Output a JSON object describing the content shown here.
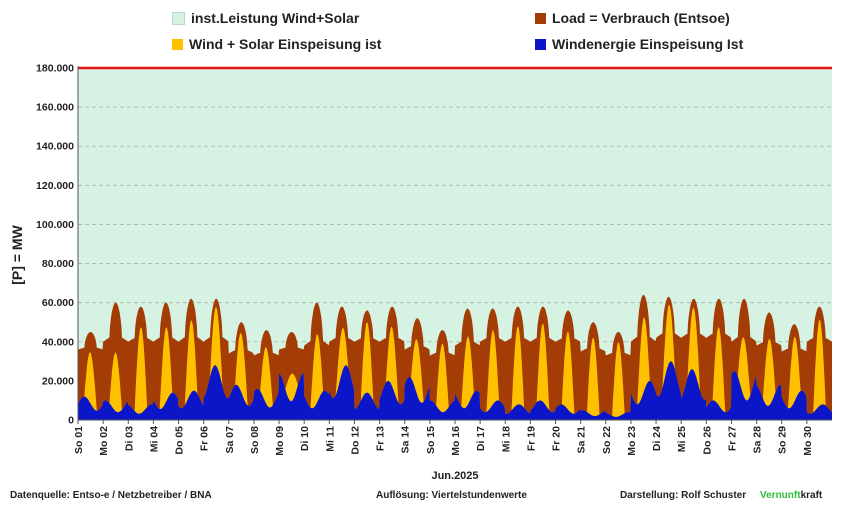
{
  "colors": {
    "installed": "#d5f2e2",
    "load": "#a33c05",
    "windsolar": "#ffc000",
    "wind": "#0a16c8",
    "grid": "#a8b4a8",
    "installed_line": "#e11414"
  },
  "legend": {
    "installed": "inst.Leistung Wind+Solar",
    "load": "Load =  Verbrauch (Entsoe)",
    "windsolar": "Wind + Solar Einspeisung ist",
    "wind": "Windenergie Einspeisung Ist"
  },
  "footer": {
    "source": "Datenquelle: Entso-e  / Netzbetreiber / BNA",
    "resolution": "Auflösung: Viertelstundenwerte",
    "author": "Darstellung:  Rolf Schuster",
    "brand_green": "Vernunft",
    "brand_black": "kraft"
  },
  "chart_data": {
    "type": "area",
    "xlabel": "Jun.2025",
    "ylabel": "[P] = MW",
    "ylim": [
      0,
      180000
    ],
    "y_ticks": [
      "0",
      "20.000",
      "40.000",
      "60.000",
      "80.000",
      "100.000",
      "120.000",
      "140.000",
      "160.000",
      "180.000"
    ],
    "grid": true,
    "legend_position": "top",
    "x_ticks": [
      "So 01",
      "Mo 02",
      "Di 03",
      "Mi 04",
      "Do 05",
      "Fr 06",
      "Sa 07",
      "So 08",
      "Mo 09",
      "Di 10",
      "Mi 11",
      "Do 12",
      "Fr 13",
      "Sa 14",
      "So 15",
      "Mo 16",
      "Di 17",
      "Mi 18",
      "Fr 19",
      "Fr 20",
      "Sa 21",
      "So 22",
      "Mo 23",
      "Di 24",
      "Mi 25",
      "Do 26",
      "Fr 27",
      "Sa 28",
      "So 29",
      "Mo 30"
    ],
    "x_tick_days": [
      1,
      2,
      3,
      4,
      5,
      6,
      7,
      8,
      9,
      10,
      11,
      12,
      13,
      14,
      15,
      16,
      17,
      18,
      19,
      20,
      21,
      22,
      23,
      24,
      25,
      26,
      27,
      28,
      29,
      30
    ],
    "installed_capacity": 180000,
    "days": [
      "2025-06-01",
      "2025-06-02",
      "2025-06-03",
      "2025-06-04",
      "2025-06-05",
      "2025-06-06",
      "2025-06-07",
      "2025-06-08",
      "2025-06-09",
      "2025-06-10",
      "2025-06-11",
      "2025-06-12",
      "2025-06-13",
      "2025-06-14",
      "2025-06-15",
      "2025-06-16",
      "2025-06-17",
      "2025-06-18",
      "2025-06-19",
      "2025-06-20",
      "2025-06-21",
      "2025-06-22",
      "2025-06-23",
      "2025-06-24",
      "2025-06-25",
      "2025-06-26",
      "2025-06-27",
      "2025-06-28",
      "2025-06-29",
      "2025-06-30"
    ],
    "series": [
      {
        "name": "Load =  Verbrauch (Entsoe)",
        "daily_min": [
          36000,
          40000,
          40000,
          40000,
          40000,
          40000,
          34000,
          33000,
          36000,
          38000,
          40000,
          40000,
          40000,
          36000,
          33000,
          38000,
          40000,
          40000,
          40000,
          40000,
          35000,
          33000,
          40000,
          42000,
          42000,
          42000,
          40000,
          38000,
          35000,
          40000
        ],
        "daily_max": [
          45000,
          60000,
          58000,
          60000,
          62000,
          62000,
          50000,
          46000,
          45000,
          60000,
          58000,
          56000,
          58000,
          52000,
          46000,
          57000,
          57000,
          58000,
          58000,
          56000,
          50000,
          45000,
          64000,
          63000,
          62000,
          62000,
          62000,
          55000,
          49000,
          58000
        ]
      },
      {
        "name": "Wind + Solar Einspeisung ist",
        "daily_peak": [
          38000,
          40000,
          52000,
          52000,
          52000,
          58000,
          48000,
          45000,
          38000,
          50000,
          50000,
          50000,
          50000,
          50000,
          45000,
          50000,
          48000,
          48000,
          50000,
          48000,
          45000,
          42000,
          58000,
          60000,
          58000,
          50000,
          55000,
          52000,
          48000,
          52000
        ]
      },
      {
        "name": "Windenergie Einspeisung Ist",
        "daily_avg": [
          12000,
          10000,
          8000,
          14000,
          15000,
          28000,
          18000,
          16000,
          24000,
          15000,
          28000,
          14000,
          20000,
          22000,
          10000,
          15000,
          10000,
          8000,
          10000,
          8000,
          5000,
          4000,
          20000,
          30000,
          26000,
          10000,
          25000,
          18000,
          15000,
          8000
        ]
      }
    ]
  }
}
